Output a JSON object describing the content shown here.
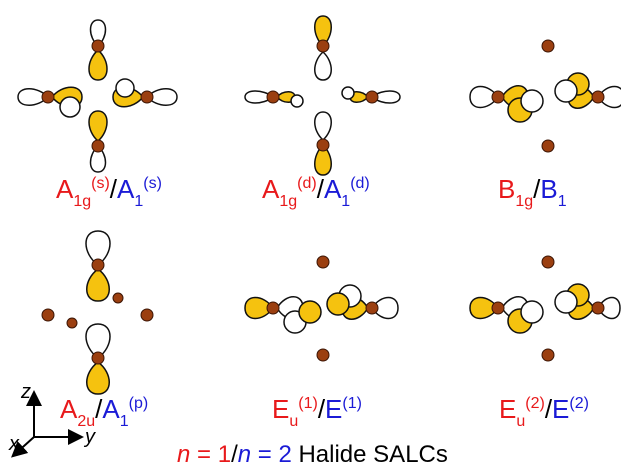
{
  "colors": {
    "atom": "#9b3f10",
    "lobe_filled": "#f5c20f",
    "lobe_empty": "#ffffff",
    "outline": "#111111",
    "red_label": "#e8191b",
    "blue_label": "#1b1bd6"
  },
  "labels": {
    "p1": {
      "a_main": "A",
      "a_sub": "1g",
      "a_sup": "(s)",
      "slash": "/",
      "b_main": "A",
      "b_sub": "1",
      "b_sup": "(s)"
    },
    "p2": {
      "a_main": "A",
      "a_sub": "1g",
      "a_sup": "(d)",
      "slash": "/",
      "b_main": "A",
      "b_sub": "1",
      "b_sup": "(d)"
    },
    "p3": {
      "a_main": "B",
      "a_sub": "1g",
      "slash": "/",
      "b_main": "B",
      "b_sub": "1"
    },
    "p4": {
      "a_main": "A",
      "a_sub": "2u",
      "slash": "/",
      "b_main": "A",
      "b_sub": "1",
      "b_sup": "(p)"
    },
    "p5": {
      "a_main": "E",
      "a_sub": "u",
      "a_sup": "(1)",
      "slash": "/",
      "b_main": "E",
      "b_sup": "(1)"
    },
    "p6": {
      "a_main": "E",
      "a_sub": "u",
      "a_sup": "(2)",
      "slash": "/",
      "b_main": "E",
      "b_sup": "(2)"
    }
  },
  "axes": {
    "z": "z",
    "y": "y",
    "x": "x"
  },
  "caption": {
    "n1_var": "n",
    "n1_eq": " = 1",
    "slash": "/",
    "n2_var": "n",
    "n2_eq": " = 2",
    "rest": " Halide SALCs"
  }
}
